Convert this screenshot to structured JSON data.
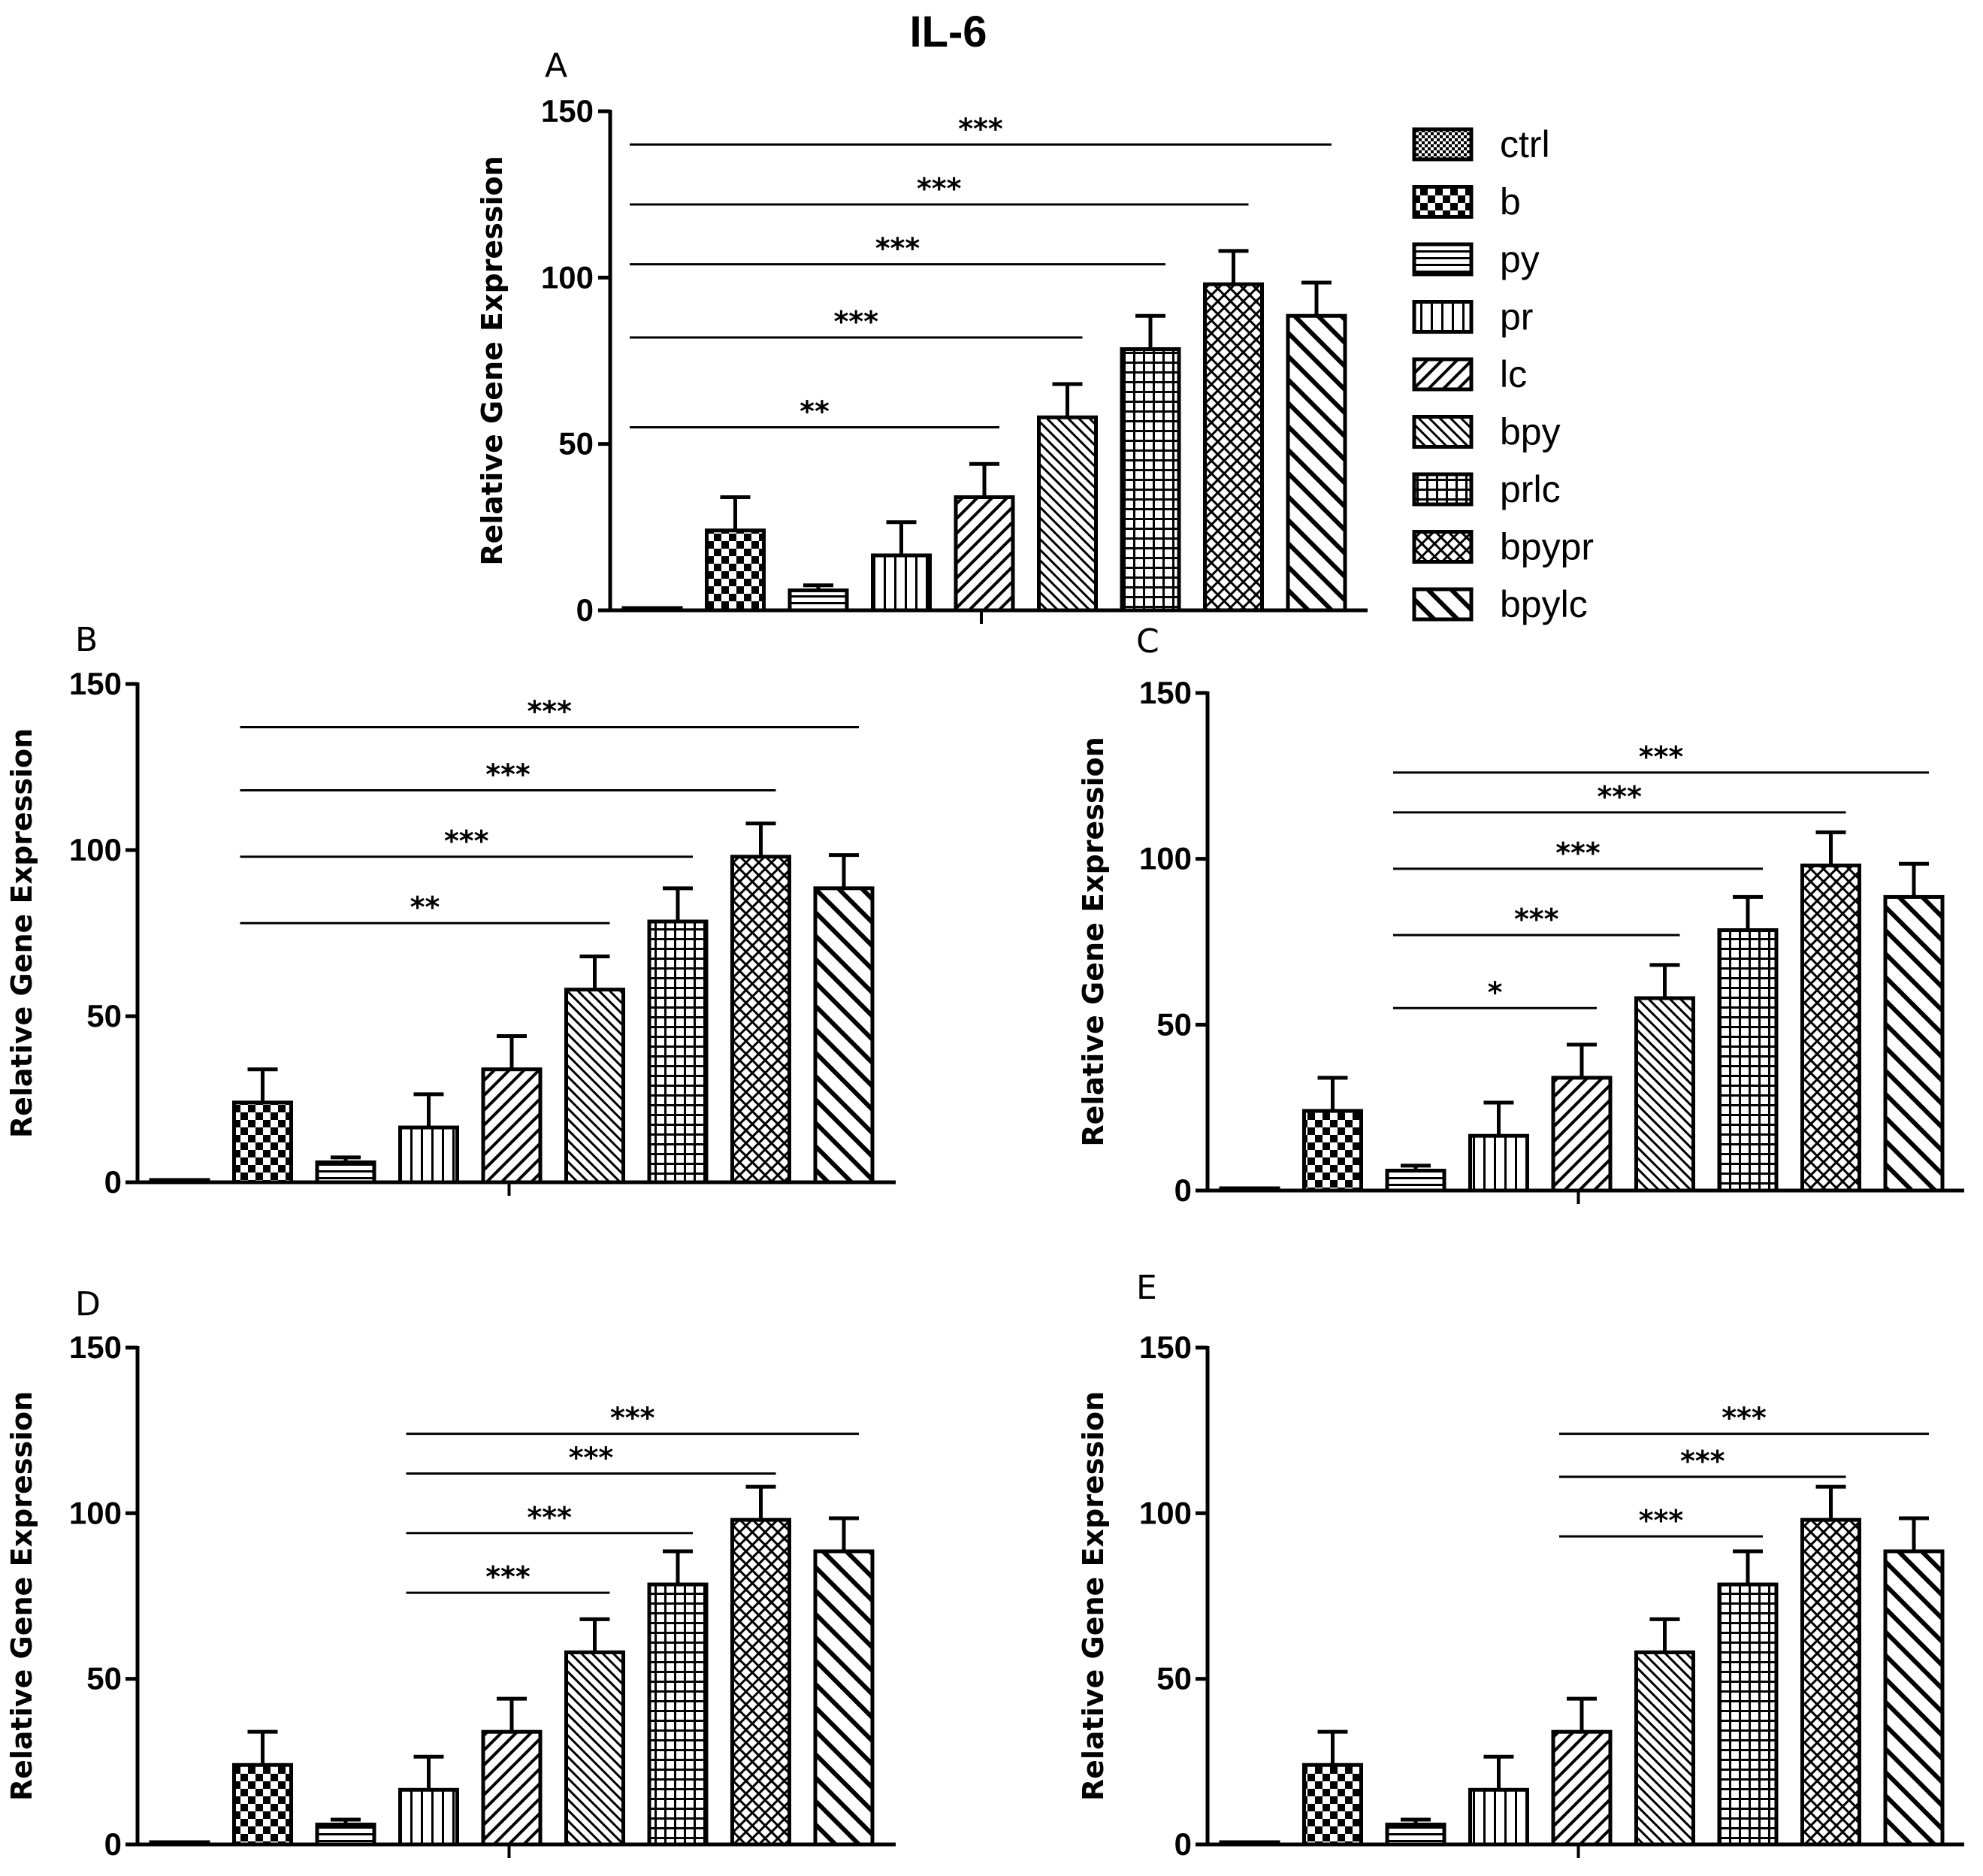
{
  "figure_title": "IL-6",
  "patterns": {
    "ctrl": "fine-checker",
    "b": "checker",
    "py": "horizontal-lines",
    "pr": "vertical-lines",
    "lc": "diagonal-up",
    "bpy": "diagonal-up-dense",
    "prlc": "grid",
    "bpypr": "crosshatch",
    "bpylc": "diagonal-down"
  },
  "colors": {
    "ink": "#000000",
    "bar_fill": "#ffffff"
  },
  "chart_data": [
    {
      "panel": "A",
      "type": "bar",
      "categories": [
        "ctrl",
        "b",
        "py",
        "pr",
        "lc",
        "bpy",
        "prlc",
        "bpypr",
        "bpylc"
      ],
      "values": [
        0.5,
        24,
        6,
        16.5,
        34,
        58,
        78.5,
        98,
        88.5
      ],
      "errors": [
        0,
        10,
        1.5,
        10,
        10,
        10,
        10,
        10,
        10
      ],
      "ylabel": "Relative Gene Expression",
      "ylim": [
        0,
        150
      ],
      "yticks": [
        "0",
        "50",
        "100",
        "150"
      ],
      "significance": [
        {
          "from": "ctrl",
          "to": "bpylc",
          "y": 140,
          "label": "***"
        },
        {
          "from": "ctrl",
          "to": "bpypr",
          "y": 122,
          "label": "***"
        },
        {
          "from": "ctrl",
          "to": "prlc",
          "y": 104,
          "label": "***"
        },
        {
          "from": "ctrl",
          "to": "bpy",
          "y": 82,
          "label": "***"
        },
        {
          "from": "ctrl",
          "to": "lc",
          "y": 55,
          "label": "**"
        }
      ]
    },
    {
      "panel": "B",
      "type": "bar",
      "categories": [
        "ctrl",
        "b",
        "py",
        "pr",
        "lc",
        "bpy",
        "prlc",
        "bpypr",
        "bpylc"
      ],
      "values": [
        0.5,
        24,
        6,
        16.5,
        34,
        58,
        78.5,
        98,
        88.5
      ],
      "errors": [
        0,
        10,
        1.5,
        10,
        10,
        10,
        10,
        10,
        10
      ],
      "ylabel": "Relative Gene Expression",
      "ylim": [
        0,
        150
      ],
      "yticks": [
        "0",
        "50",
        "100",
        "150"
      ],
      "significance": [
        {
          "from": "b",
          "to": "bpylc",
          "y": 137,
          "label": "***"
        },
        {
          "from": "b",
          "to": "bpypr",
          "y": 118,
          "label": "***"
        },
        {
          "from": "b",
          "to": "prlc",
          "y": 98,
          "label": "***"
        },
        {
          "from": "b",
          "to": "bpy",
          "y": 78,
          "label": "**"
        }
      ]
    },
    {
      "panel": "C",
      "type": "bar",
      "categories": [
        "ctrl",
        "b",
        "py",
        "pr",
        "lc",
        "bpy",
        "prlc",
        "bpypr",
        "bpylc"
      ],
      "values": [
        0.5,
        24,
        6,
        16.5,
        34,
        58,
        78.5,
        98,
        88.5
      ],
      "errors": [
        0,
        10,
        1.5,
        10,
        10,
        10,
        10,
        10,
        10
      ],
      "ylabel": "Relative Gene Expression",
      "ylim": [
        0,
        150
      ],
      "yticks": [
        "0",
        "50",
        "100",
        "150"
      ],
      "significance": [
        {
          "from": "py",
          "to": "bpylc",
          "y": 126,
          "label": "***"
        },
        {
          "from": "py",
          "to": "bpypr",
          "y": 114,
          "label": "***"
        },
        {
          "from": "py",
          "to": "prlc",
          "y": 97,
          "label": "***"
        },
        {
          "from": "py",
          "to": "bpy",
          "y": 77,
          "label": "***"
        },
        {
          "from": "py",
          "to": "lc",
          "y": 55,
          "label": "*"
        }
      ]
    },
    {
      "panel": "D",
      "type": "bar",
      "categories": [
        "ctrl",
        "b",
        "py",
        "pr",
        "lc",
        "bpy",
        "prlc",
        "bpypr",
        "bpylc"
      ],
      "values": [
        0.5,
        24,
        6,
        16.5,
        34,
        58,
        78.5,
        98,
        88.5
      ],
      "errors": [
        0,
        10,
        1.5,
        10,
        10,
        10,
        10,
        10,
        10
      ],
      "ylabel": "Relative Gene Expression",
      "ylim": [
        0,
        150
      ],
      "yticks": [
        "0",
        "50",
        "100",
        "150"
      ],
      "significance": [
        {
          "from": "pr",
          "to": "bpylc",
          "y": 124,
          "label": "***"
        },
        {
          "from": "pr",
          "to": "bpypr",
          "y": 112,
          "label": "***"
        },
        {
          "from": "pr",
          "to": "prlc",
          "y": 94,
          "label": "***"
        },
        {
          "from": "pr",
          "to": "bpy",
          "y": 76,
          "label": "***"
        }
      ]
    },
    {
      "panel": "E",
      "type": "bar",
      "categories": [
        "ctrl",
        "b",
        "py",
        "pr",
        "lc",
        "bpy",
        "prlc",
        "bpypr",
        "bpylc"
      ],
      "values": [
        0.5,
        24,
        6,
        16.5,
        34,
        58,
        78.5,
        98,
        88.5
      ],
      "errors": [
        0,
        10,
        1.5,
        10,
        10,
        10,
        10,
        10,
        10
      ],
      "ylabel": "Relative Gene Expression",
      "ylim": [
        0,
        150
      ],
      "yticks": [
        "0",
        "50",
        "100",
        "150"
      ],
      "significance": [
        {
          "from": "lc",
          "to": "bpylc",
          "y": 124,
          "label": "***"
        },
        {
          "from": "lc",
          "to": "bpypr",
          "y": 111,
          "label": "***"
        },
        {
          "from": "lc",
          "to": "prlc",
          "y": 93,
          "label": "***"
        }
      ]
    }
  ],
  "legend": {
    "items": [
      "ctrl",
      "b",
      "py",
      "pr",
      "lc",
      "bpy",
      "prlc",
      "bpypr",
      "bpylc"
    ]
  }
}
